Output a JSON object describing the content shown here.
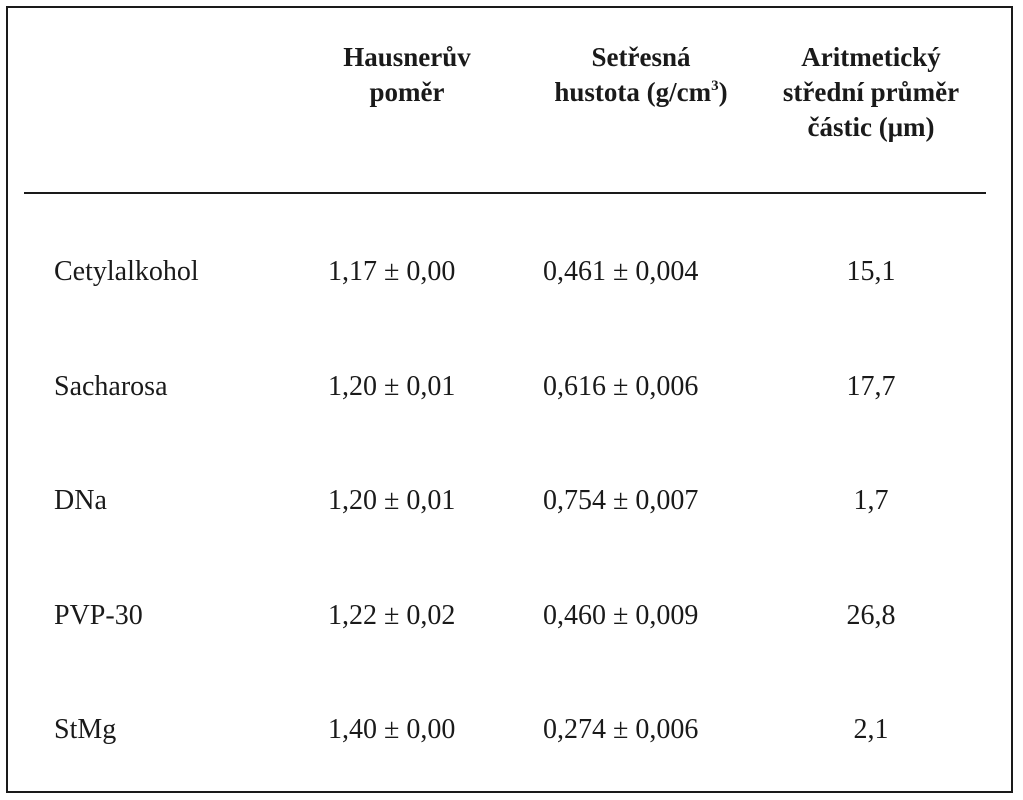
{
  "table": {
    "headers": {
      "hausner": [
        "Hausnerův",
        "poměr"
      ],
      "density": [
        "Setřesná",
        "hustota (g/cm",
        "3",
        ")"
      ],
      "diameter": [
        "Aritmetický",
        "střední průměr",
        "částic (μm)"
      ]
    },
    "rows": [
      {
        "name": "Cetylalkohol",
        "hausner": "1,17 ± 0,00",
        "density": "0,461 ± 0,004",
        "diameter": "15,1"
      },
      {
        "name": "Sacharosa",
        "hausner": "1,20 ± 0,01",
        "density": "0,616 ± 0,006",
        "diameter": "17,7"
      },
      {
        "name": "DNa",
        "hausner": "1,20 ± 0,01",
        "density": "0,754 ± 0,007",
        "diameter": "1,7"
      },
      {
        "name": "PVP-30",
        "hausner": "1,22 ± 0,02",
        "density": "0,460 ± 0,009",
        "diameter": "26,8"
      },
      {
        "name": "StMg",
        "hausner": "1,40 ± 0,00",
        "density": "0,274 ± 0,006",
        "diameter": "2,1"
      }
    ]
  }
}
